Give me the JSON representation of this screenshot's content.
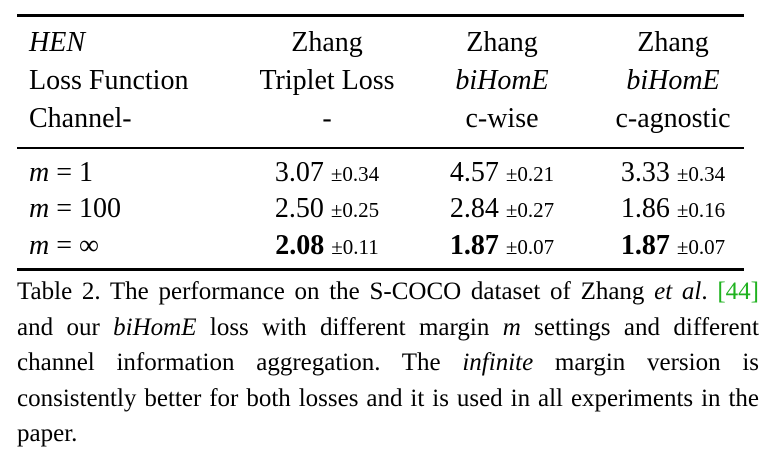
{
  "table": {
    "header_rows": [
      [
        "HEN",
        "Zhang",
        "Zhang",
        "Zhang"
      ],
      [
        "Loss Function",
        "Triplet Loss",
        "biHomE",
        "biHomE"
      ],
      [
        "Channel-",
        "-",
        "c-wise",
        "c-agnostic"
      ]
    ],
    "rows": [
      {
        "m_var": "m",
        "eq": " = ",
        "m_val": "1",
        "cells": [
          {
            "value": "3.07",
            "pm": "±0.34"
          },
          {
            "value": "4.57",
            "pm": "±0.21"
          },
          {
            "value": "3.33",
            "pm": "±0.34"
          }
        ]
      },
      {
        "m_var": "m",
        "eq": " = ",
        "m_val": "100",
        "cells": [
          {
            "value": "2.50",
            "pm": "±0.25"
          },
          {
            "value": "2.84",
            "pm": "±0.27"
          },
          {
            "value": "1.86",
            "pm": "±0.16"
          }
        ]
      },
      {
        "m_var": "m",
        "eq": " = ",
        "m_val": "∞",
        "cells": [
          {
            "value": "2.08",
            "pm": "±0.11"
          },
          {
            "value": "1.87",
            "pm": "±0.07"
          },
          {
            "value": "1.87",
            "pm": "±0.07"
          }
        ]
      }
    ]
  },
  "caption": {
    "lead": "Table 2. The performance on the S-COCO dataset of Zhang ",
    "etal": "et al",
    "dot": ". ",
    "ref": "[44]",
    "mid1": " and our ",
    "bihome": "biHomE",
    "mid2": " loss with different margin ",
    "m": "m",
    "mid3": " settings and different channel information aggregation.  The ",
    "infinite": "infinite",
    "tail": " margin version is consistently better for both losses and it is used in all experiments in the paper."
  }
}
